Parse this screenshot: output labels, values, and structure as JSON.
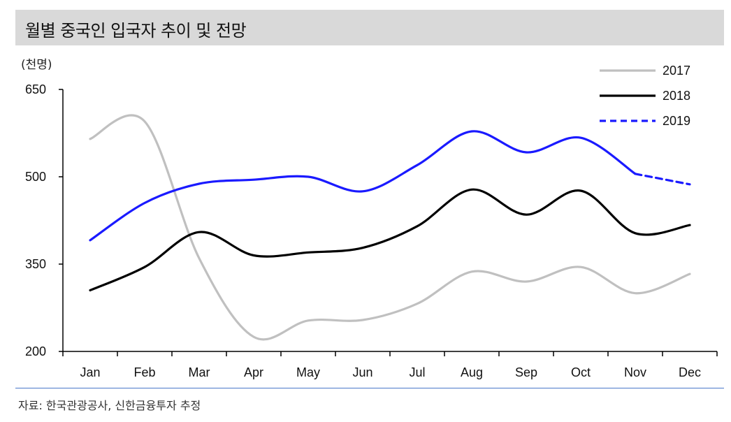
{
  "header": {
    "title": "월별 중국인 입국자 추이 및 전망"
  },
  "unit_label": "(천명)",
  "source": "자료: 한국관광공사, 신한금융투자 추정",
  "colors": {
    "header_bg": "#d9d9d9",
    "footer_line": "#4a78c9"
  },
  "chart_data": {
    "type": "line",
    "title": "월별 중국인 입국자 추이 및 전망",
    "ylabel": "(천명)",
    "xlabel": "",
    "categories": [
      "Jan",
      "Feb",
      "Mar",
      "Apr",
      "May",
      "Jun",
      "Jul",
      "Aug",
      "Sep",
      "Oct",
      "Nov",
      "Dec"
    ],
    "ylim": [
      200,
      650
    ],
    "yticks": [
      200,
      350,
      500,
      650
    ],
    "grid": false,
    "legend_position": "top-right",
    "series": [
      {
        "name": "2017",
        "color": "#c0c0c0",
        "dash": "solid",
        "values": [
          565,
          595,
          360,
          225,
          253,
          254,
          282,
          337,
          320,
          345,
          300,
          333
        ]
      },
      {
        "name": "2018",
        "color": "#000000",
        "dash": "solid",
        "values": [
          305,
          345,
          405,
          365,
          370,
          378,
          415,
          478,
          435,
          476,
          403,
          417
        ]
      },
      {
        "name": "2019",
        "color": "#1a1aff",
        "dash": "solid",
        "values": [
          391,
          455,
          488,
          495,
          500,
          475,
          520,
          578,
          542,
          567,
          505,
          null
        ]
      },
      {
        "name": "",
        "color": "#1a1aff",
        "dash": "dashed",
        "values": [
          null,
          null,
          null,
          null,
          null,
          null,
          null,
          null,
          null,
          null,
          505,
          487
        ]
      }
    ]
  }
}
